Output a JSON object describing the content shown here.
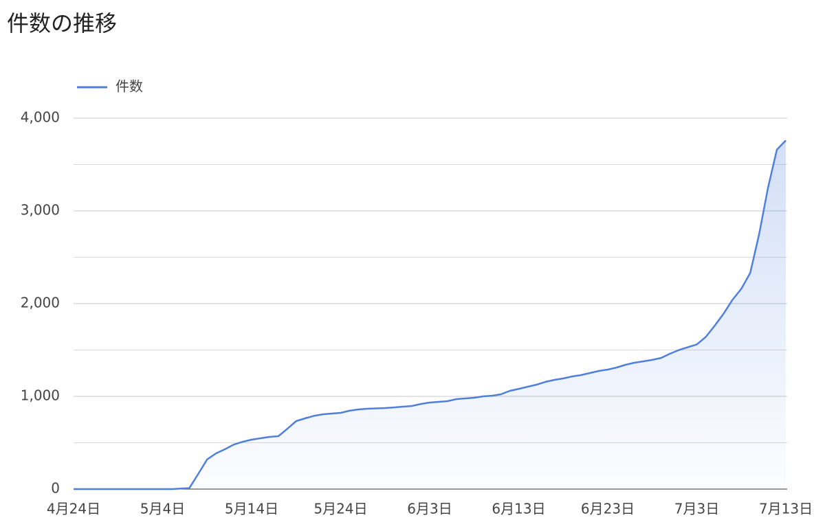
{
  "chart_data": {
    "type": "area",
    "title": "件数の推移",
    "categories": [
      "4月24日",
      null,
      null,
      null,
      null,
      null,
      null,
      null,
      null,
      null,
      "5月4日",
      null,
      null,
      null,
      null,
      null,
      null,
      null,
      null,
      null,
      "5月14日",
      null,
      null,
      null,
      null,
      null,
      null,
      null,
      null,
      null,
      "5月24日",
      null,
      null,
      null,
      null,
      null,
      null,
      null,
      null,
      null,
      "6月3日",
      null,
      null,
      null,
      null,
      null,
      null,
      null,
      null,
      null,
      "6月13日",
      null,
      null,
      null,
      null,
      null,
      null,
      null,
      null,
      null,
      "6月23日",
      null,
      null,
      null,
      null,
      null,
      null,
      null,
      null,
      null,
      "7月3日",
      null,
      null,
      null,
      null,
      null,
      null,
      null,
      null,
      null,
      "7月13日"
    ],
    "series": [
      {
        "name": "件数",
        "color": "#4f7fdc",
        "values": [
          0,
          0,
          0,
          0,
          0,
          0,
          0,
          0,
          0,
          0,
          0,
          0,
          5,
          10,
          163,
          320,
          385,
          430,
          480,
          510,
          533,
          548,
          563,
          570,
          650,
          733,
          763,
          790,
          807,
          815,
          822,
          845,
          859,
          867,
          870,
          874,
          881,
          889,
          896,
          918,
          933,
          941,
          948,
          970,
          978,
          985,
          1000,
          1007,
          1022,
          1059,
          1081,
          1104,
          1126,
          1156,
          1178,
          1193,
          1215,
          1230,
          1252,
          1274,
          1289,
          1311,
          1341,
          1363,
          1378,
          1393,
          1415,
          1460,
          1500,
          1530,
          1560,
          1640,
          1760,
          1890,
          2040,
          2160,
          2330,
          2750,
          3250,
          3660,
          3760
        ]
      }
    ],
    "ylim": [
      0,
      4000
    ],
    "yticks": [
      0,
      {
        "value": 1000,
        "label": "1,000"
      },
      {
        "value": 2000,
        "label": "2,000"
      },
      {
        "value": 3000,
        "label": "3,000"
      },
      {
        "value": 4000,
        "label": "4,000"
      }
    ],
    "minor_gridlines": [
      500,
      1500,
      2500,
      3500
    ],
    "grid": true,
    "legend": "top-left"
  }
}
